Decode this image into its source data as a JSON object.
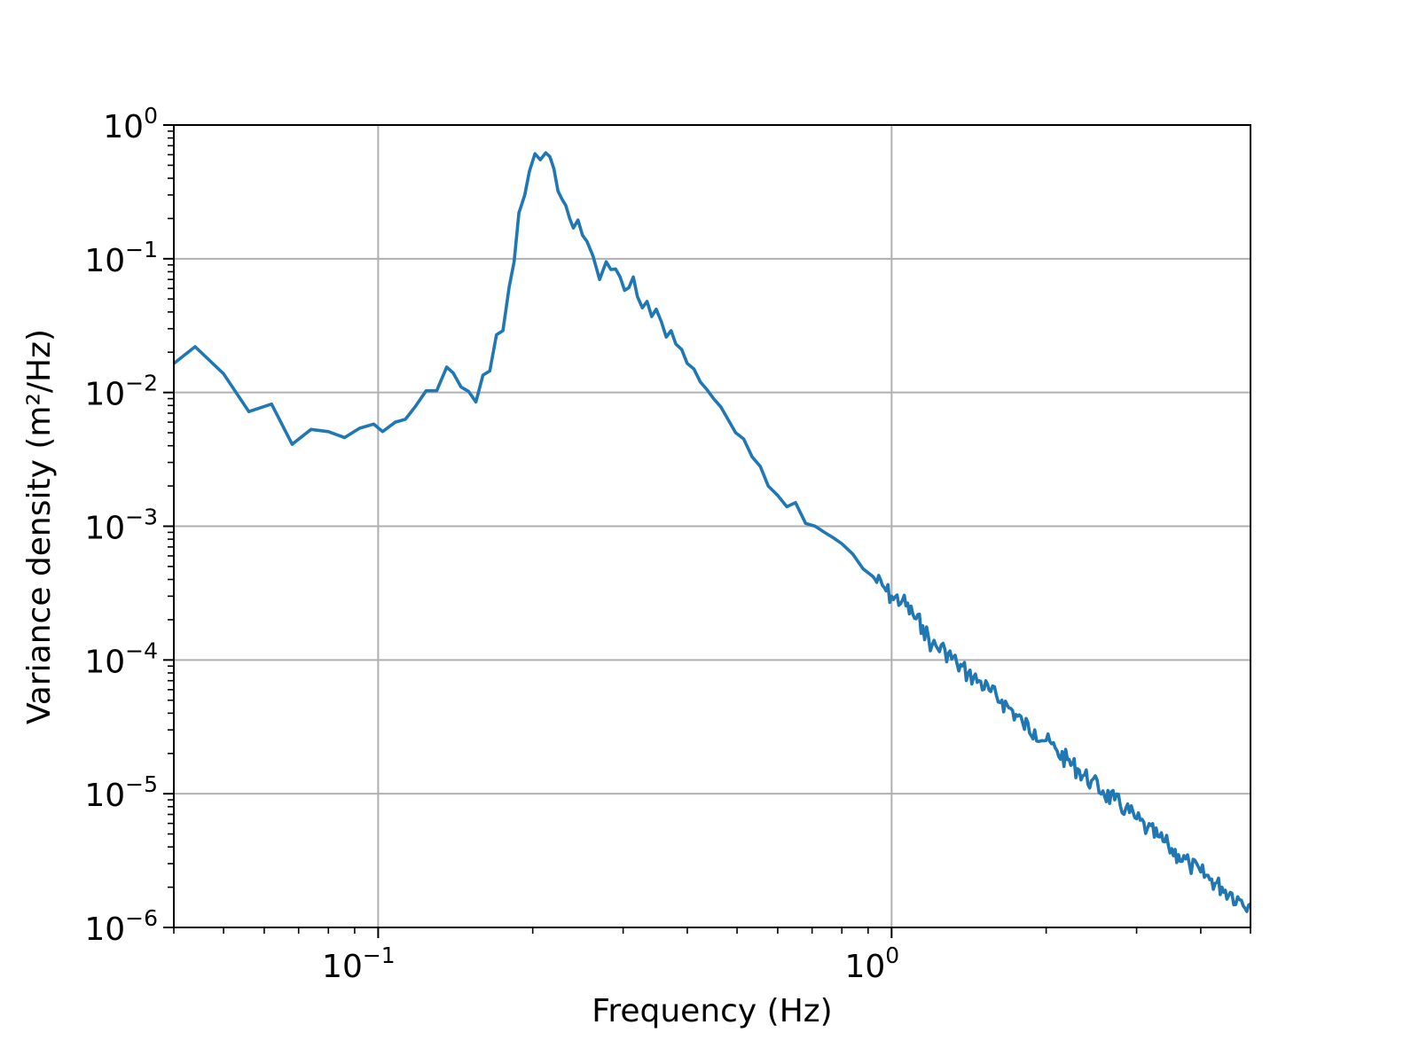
{
  "chart_data": {
    "type": "line",
    "title": "",
    "xlabel": "Frequency (Hz)",
    "ylabel": "Variance density (m²/Hz)",
    "xscale": "log",
    "yscale": "log",
    "xlim": [
      0.04,
      5.0
    ],
    "ylim": [
      1e-06,
      1.0
    ],
    "grid": true,
    "legend": null,
    "line_color": "#1f77b4",
    "grid_color": "#b0b0b0",
    "x_major_ticks": [
      {
        "value": 0.1,
        "base": "10",
        "exp": "−1"
      },
      {
        "value": 1.0,
        "base": "10",
        "exp": "0"
      }
    ],
    "x_minor_ticks": [
      0.04,
      0.05,
      0.06,
      0.07,
      0.08,
      0.09,
      0.2,
      0.3,
      0.4,
      0.5,
      0.6,
      0.7,
      0.8,
      0.9,
      2,
      3,
      4,
      5
    ],
    "y_major_ticks": [
      {
        "value": 1.0,
        "base": "10",
        "exp": "0"
      },
      {
        "value": 0.1,
        "base": "10",
        "exp": "−1"
      },
      {
        "value": 0.01,
        "base": "10",
        "exp": "−2"
      },
      {
        "value": 0.001,
        "base": "10",
        "exp": "−3"
      },
      {
        "value": 0.0001,
        "base": "10",
        "exp": "−4"
      },
      {
        "value": 1e-05,
        "base": "10",
        "exp": "−5"
      },
      {
        "value": 1e-06,
        "base": "10",
        "exp": "−6"
      }
    ],
    "series": [
      {
        "name": "Variance density",
        "x": [
          0.04,
          0.044,
          0.05,
          0.056,
          0.062,
          0.068,
          0.074,
          0.08,
          0.086,
          0.092,
          0.098,
          0.102,
          0.108,
          0.113,
          0.118,
          0.124,
          0.13,
          0.136,
          0.14,
          0.145,
          0.15,
          0.155,
          0.16,
          0.165,
          0.17,
          0.175,
          0.18,
          0.184,
          0.188,
          0.193,
          0.197,
          0.202,
          0.207,
          0.212,
          0.216,
          0.22,
          0.224,
          0.228,
          0.232,
          0.236,
          0.24,
          0.245,
          0.25,
          0.255,
          0.262,
          0.27,
          0.278,
          0.284,
          0.29,
          0.296,
          0.302,
          0.308,
          0.314,
          0.32,
          0.327,
          0.334,
          0.341,
          0.348,
          0.356,
          0.364,
          0.372,
          0.38,
          0.39,
          0.4,
          0.412,
          0.424,
          0.437,
          0.45,
          0.465,
          0.48,
          0.497,
          0.515,
          0.535,
          0.555,
          0.575,
          0.6,
          0.625,
          0.65,
          0.68,
          0.71,
          0.74,
          0.77,
          0.8,
          0.84,
          0.88,
          0.92,
          0.96,
          1.0,
          1.05,
          1.1,
          1.15,
          1.2,
          1.27,
          1.34,
          1.41,
          1.48,
          1.56,
          1.64,
          1.72,
          1.8,
          1.9,
          2.0,
          2.1,
          2.2,
          2.32,
          2.45,
          2.58,
          2.72,
          2.86,
          3.0,
          3.15,
          3.3,
          3.46,
          3.62,
          3.8,
          4.0,
          4.2,
          4.4,
          4.6,
          4.8,
          5.0
        ],
        "y": [
          0.0165,
          0.022,
          0.0138,
          0.0072,
          0.0082,
          0.0041,
          0.0053,
          0.0051,
          0.0046,
          0.0054,
          0.0058,
          0.0051,
          0.006,
          0.0063,
          0.0078,
          0.0103,
          0.0103,
          0.0155,
          0.014,
          0.011,
          0.0102,
          0.0085,
          0.0135,
          0.0145,
          0.027,
          0.029,
          0.062,
          0.095,
          0.22,
          0.3,
          0.45,
          0.61,
          0.55,
          0.62,
          0.58,
          0.47,
          0.32,
          0.28,
          0.25,
          0.2,
          0.17,
          0.195,
          0.15,
          0.135,
          0.105,
          0.07,
          0.095,
          0.083,
          0.084,
          0.073,
          0.058,
          0.061,
          0.073,
          0.052,
          0.043,
          0.048,
          0.037,
          0.042,
          0.034,
          0.026,
          0.029,
          0.023,
          0.021,
          0.0165,
          0.015,
          0.012,
          0.0105,
          0.009,
          0.0078,
          0.0063,
          0.005,
          0.0045,
          0.0033,
          0.0028,
          0.002,
          0.0017,
          0.0014,
          0.0015,
          0.00105,
          0.001,
          0.0009,
          0.00082,
          0.00074,
          0.00062,
          0.00048,
          0.00042,
          0.00036,
          0.0003,
          0.00028,
          0.00022,
          0.00018,
          0.00013,
          0.00012,
          9.5e-05,
          8e-05,
          7e-05,
          5.8e-05,
          5e-05,
          4.2e-05,
          3.4e-05,
          3e-05,
          2.5e-05,
          2.1e-05,
          1.8e-05,
          1.5e-05,
          1.25e-05,
          1.05e-05,
          9e-06,
          7.8e-06,
          6.5e-06,
          5.5e-06,
          4.8e-06,
          4.1e-06,
          3.5e-06,
          3e-06,
          2.6e-06,
          2.3e-06,
          2e-06,
          1.8e-06,
          1.6e-06,
          1.5e-06
        ]
      }
    ]
  }
}
